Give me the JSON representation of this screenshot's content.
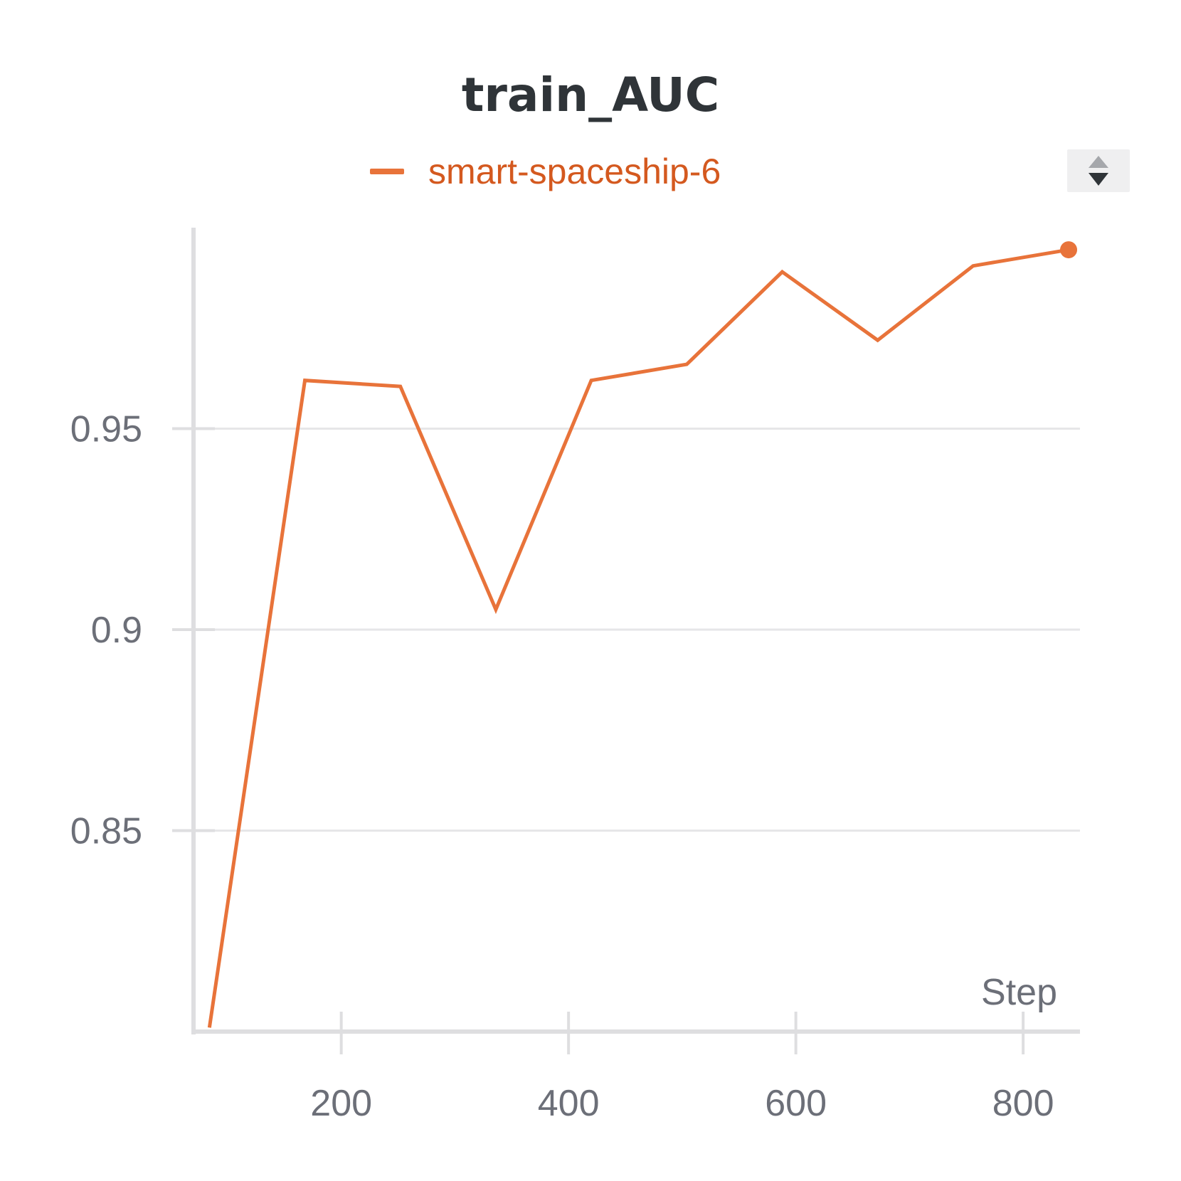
{
  "colors": {
    "series": "#e8733a",
    "legend_text": "#d4591f",
    "grid": "#e6e6e8",
    "axis": "#dedee0",
    "tick_text": "#6c6f78",
    "title": "#2f3438"
  },
  "icons": {
    "sort": "sort-up-down-icon"
  },
  "chart_data": {
    "type": "line",
    "title": "train_AUC",
    "xlabel": "Step",
    "ylabel": "",
    "xlim": [
      70,
      850
    ],
    "ylim": [
      0.8,
      1.0
    ],
    "x_ticks": [
      200,
      400,
      600,
      800
    ],
    "x_tick_labels": [
      "200",
      "400",
      "600",
      "800"
    ],
    "y_ticks": [
      0.85,
      0.9,
      0.95
    ],
    "y_tick_labels": [
      "0.85",
      "0.9",
      "0.95"
    ],
    "grid": "horizontal",
    "legend_position": "top-center",
    "series": [
      {
        "name": "smart-spaceship-6",
        "x": [
          84,
          168,
          252,
          336,
          420,
          504,
          588,
          672,
          756,
          840
        ],
        "y": [
          0.801,
          0.962,
          0.9605,
          0.905,
          0.962,
          0.966,
          0.989,
          0.972,
          0.9905,
          0.9945
        ]
      }
    ]
  }
}
